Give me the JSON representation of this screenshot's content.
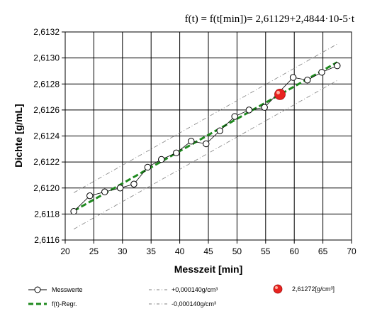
{
  "chart_data": {
    "type": "scatter",
    "title": "f(t) = f(t[min])= 2,61129+2,4844·10-5·t",
    "xlabel": "Messzeit [min]",
    "ylabel": "Dichte [g/mL]",
    "xlim": [
      20,
      70
    ],
    "ylim": [
      2.6116,
      2.6132
    ],
    "x_ticks": [
      "20",
      "25",
      "30",
      "35",
      "40",
      "45",
      "50",
      "55",
      "60",
      "65",
      "70"
    ],
    "y_ticks": [
      "2,6116",
      "2,6118",
      "2,6120",
      "2,6122",
      "2,6124",
      "2,6126",
      "2,6128",
      "2,6130",
      "2,6132"
    ],
    "grid": true,
    "legend_position": "bottom",
    "series": [
      {
        "name": "Messwerte",
        "x": [
          21.5,
          24.3,
          26.9,
          29.6,
          32.0,
          34.4,
          36.8,
          39.4,
          42.0,
          44.6,
          47.0,
          49.6,
          52.1,
          54.8,
          59.8,
          62.3,
          64.8,
          67.5
        ],
        "y": [
          2.61182,
          2.61194,
          2.61197,
          2.612,
          2.61203,
          2.61216,
          2.61222,
          2.61227,
          2.61236,
          2.61234,
          2.61244,
          2.61255,
          2.6126,
          2.61262,
          2.61285,
          2.61283,
          2.61289,
          2.61294
        ]
      },
      {
        "name": "f(t)-Regr.",
        "x": [
          21.5,
          67.5
        ],
        "y": [
          2.611824,
          2.612967
        ]
      },
      {
        "name": "+0,000140g/cm³",
        "x": [
          21.5,
          67.5
        ],
        "y": [
          2.611964,
          2.613107
        ]
      },
      {
        "name": "-0,000140g/cm³",
        "x": [
          21.5,
          67.5
        ],
        "y": [
          2.611684,
          2.612827
        ]
      },
      {
        "name": "2,61272[g/cm³]",
        "x": [
          57.5
        ],
        "y": [
          2.61272
        ]
      }
    ],
    "colors": {
      "regression": "#1f8a1f",
      "highlight": "#e8231f",
      "band": "#7f7f7f"
    }
  }
}
